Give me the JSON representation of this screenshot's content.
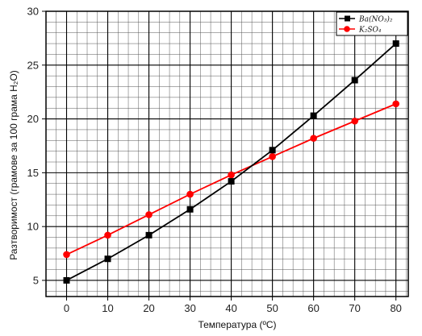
{
  "chart_data": {
    "type": "line",
    "xlabel": "Температура (ºC)",
    "ylabel": "Разтворимост (грамове за 100 грама H₂O)",
    "x": [
      0,
      10,
      20,
      30,
      40,
      50,
      60,
      70,
      80
    ],
    "xlim": [
      -5,
      83
    ],
    "ylim": [
      3.5,
      30
    ],
    "xticks": [
      "0",
      "10",
      "20",
      "30",
      "40",
      "50",
      "60",
      "70",
      "80"
    ],
    "yticks": [
      "5",
      "10",
      "15",
      "20",
      "25",
      "30"
    ],
    "grid": true,
    "legend_position": "top-right",
    "series": [
      {
        "name": "Ba(NO₃)₂",
        "color": "#000000",
        "marker": "square",
        "values": [
          5.0,
          7.0,
          9.2,
          11.6,
          14.2,
          17.1,
          20.3,
          23.6,
          27.0
        ]
      },
      {
        "name": "K₂SO₄",
        "color": "#ff0000",
        "marker": "circle",
        "values": [
          7.4,
          9.2,
          11.1,
          13.0,
          14.8,
          16.5,
          18.2,
          19.8,
          21.4
        ]
      }
    ]
  }
}
